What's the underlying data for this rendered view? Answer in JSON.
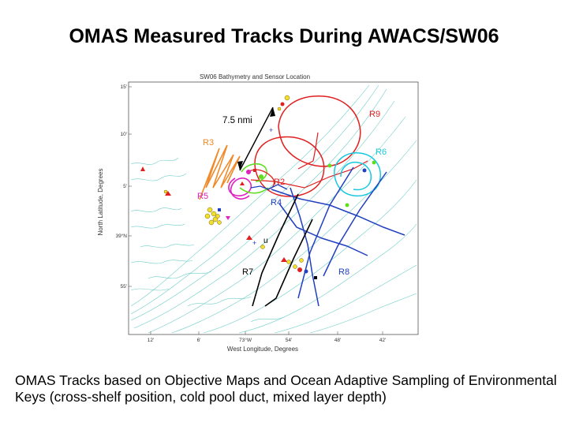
{
  "slide": {
    "title": "OMAS Measured Tracks During AWACS/SW06",
    "caption": "OMAS Tracks based on Objective Maps and Ocean Adaptive Sampling of Environmental Keys (cross-shelf position, cold pool duct, mixed layer depth)"
  },
  "map": {
    "title": "SW06 Bathymetry and Sensor Location",
    "xlabel": "West Longitude, Degrees",
    "ylabel": "North Latitude, Degrees",
    "lat_ticks": [
      "15'",
      "10'",
      "5'",
      "39°N",
      "55'"
    ],
    "lon_ticks": [
      "12'",
      "6'",
      "73°W",
      "54'",
      "48'",
      "42'"
    ],
    "scale_label": "7.5 nmi",
    "tracks": [
      {
        "id": "R9",
        "label": "R9",
        "color": "#e02020"
      },
      {
        "id": "R3",
        "label": "R3",
        "color": "#f08a28"
      },
      {
        "id": "R6",
        "label": "R6",
        "color": "#18c8e0"
      },
      {
        "id": "R2",
        "label": "R2",
        "color": "#e02020"
      },
      {
        "id": "R5",
        "label": "R5",
        "color": "#e020c0"
      },
      {
        "id": "R4",
        "label": "R4",
        "color": "#2040c0"
      },
      {
        "id": "R7",
        "label": "R7",
        "color": "#000000"
      },
      {
        "id": "R8",
        "label": "R8",
        "color": "#2040c0"
      }
    ],
    "colors": {
      "bathymetry": "#5ec8c0",
      "green_track": "#60dd20",
      "sensor_yellow": "#f2e030"
    }
  }
}
